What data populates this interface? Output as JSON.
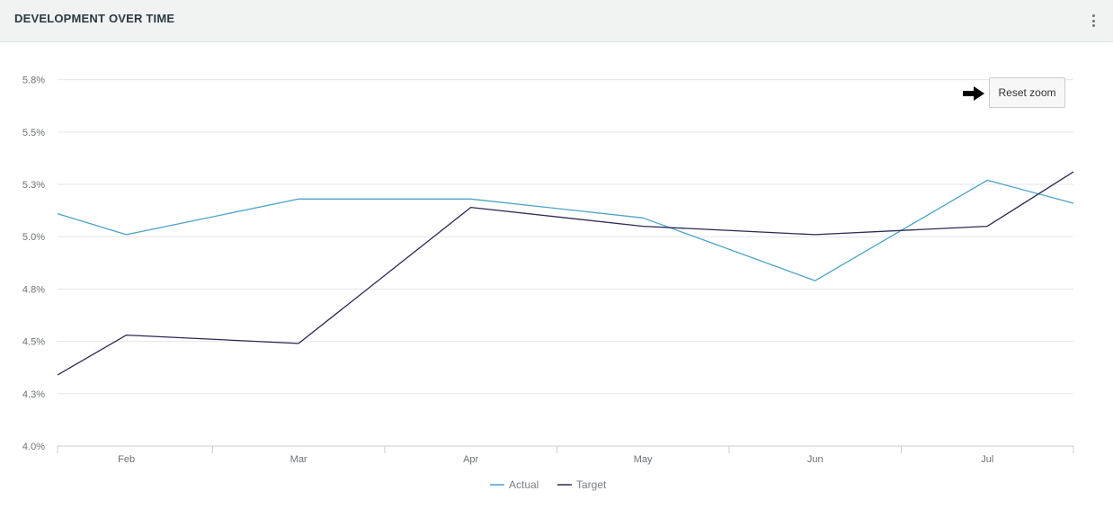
{
  "panel": {
    "title": "DEVELOPMENT OVER TIME",
    "menu_icon": "more-vertical-icon"
  },
  "reset_zoom": {
    "label": "Reset zoom",
    "pointer_icon": "arrow-right-icon"
  },
  "colors": {
    "actual": "#4ba3c7",
    "target": "#2c2a56",
    "grid": "#e6e6e6",
    "axis": "#cccccc"
  },
  "chart_data": {
    "type": "line",
    "title": "",
    "xlabel": "",
    "ylabel": "",
    "ylim": [
      4.0,
      5.8
    ],
    "xlim": [
      0.6,
      6.5
    ],
    "yticks": [
      4.0,
      4.25,
      4.5,
      4.75,
      5.0,
      5.25,
      5.5,
      5.75
    ],
    "ytick_labels": [
      "4.0%",
      "4.3%",
      "4.5%",
      "4.8%",
      "5.0%",
      "5.3%",
      "5.5%",
      "5.8%"
    ],
    "categories": [
      "Feb",
      "Mar",
      "Apr",
      "May",
      "Jun",
      "Jul"
    ],
    "category_positions": [
      1,
      2,
      3,
      4,
      5,
      6
    ],
    "series": [
      {
        "name": "Actual",
        "points": [
          [
            0.6,
            5.11
          ],
          [
            1,
            5.01
          ],
          [
            2,
            5.18
          ],
          [
            3,
            5.18
          ],
          [
            4,
            5.09
          ],
          [
            5,
            4.79
          ],
          [
            6,
            5.27
          ],
          [
            6.5,
            5.16
          ]
        ]
      },
      {
        "name": "Target",
        "points": [
          [
            0.6,
            4.34
          ],
          [
            1,
            4.53
          ],
          [
            2,
            4.49
          ],
          [
            3,
            5.14
          ],
          [
            4,
            5.05
          ],
          [
            5,
            5.01
          ],
          [
            6,
            5.05
          ],
          [
            6.5,
            5.31
          ]
        ]
      }
    ],
    "grid": true,
    "legend": "bottom-center"
  }
}
